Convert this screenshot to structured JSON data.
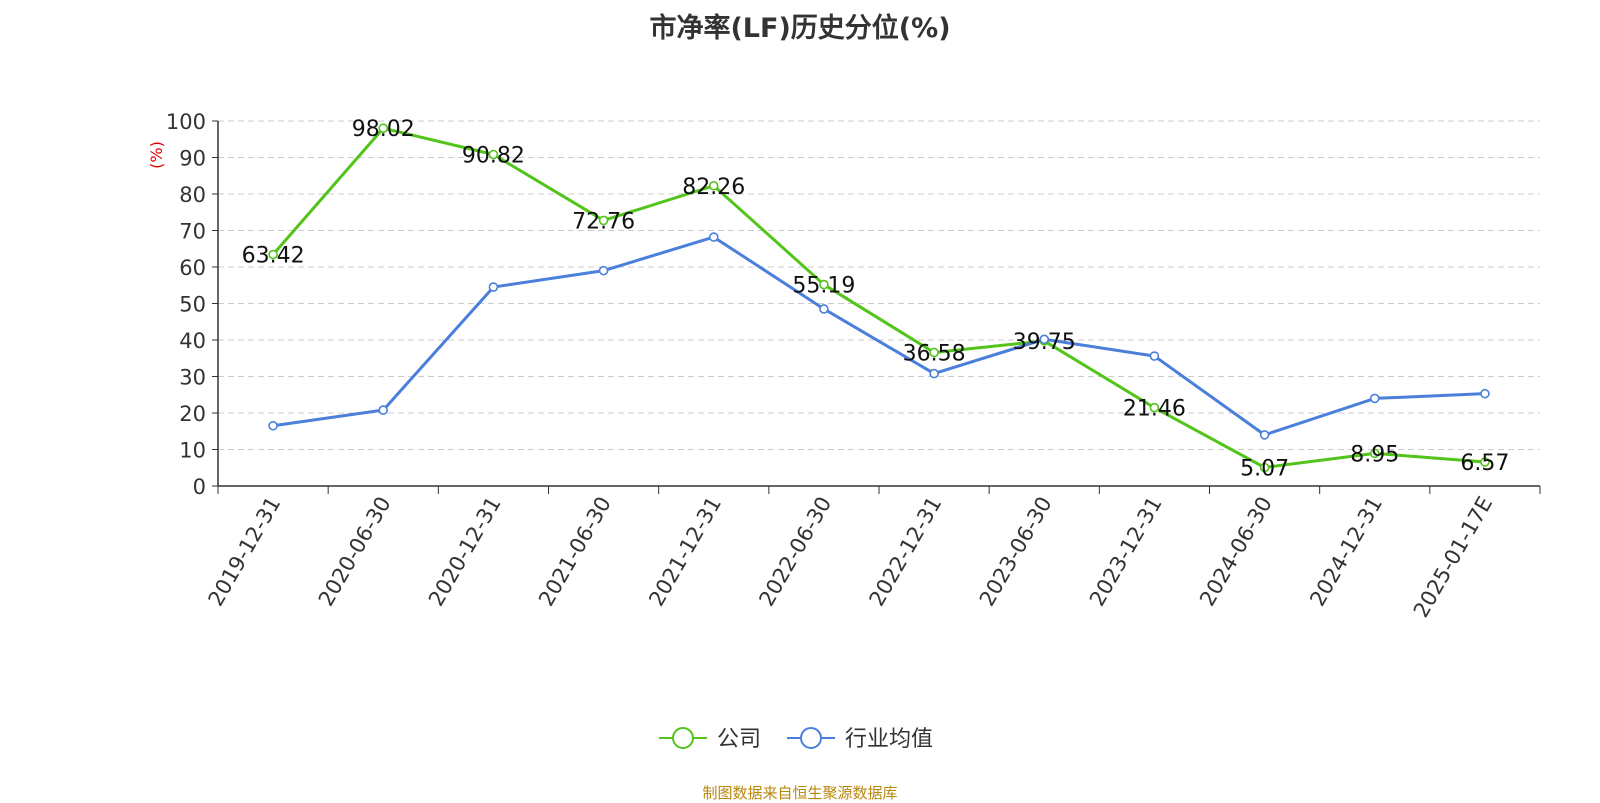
{
  "chart_data": {
    "type": "line",
    "title": "市净率(LF)历史分位(%)",
    "ylabel": "(%)",
    "xlabel": "",
    "ylim": [
      0,
      100
    ],
    "yticks": [
      0,
      10,
      20,
      30,
      40,
      50,
      60,
      70,
      80,
      90,
      100
    ],
    "grid": true,
    "legend_position": "bottom-center",
    "categories": [
      "2019-12-31",
      "2020-06-30",
      "2020-12-31",
      "2021-06-30",
      "2021-12-31",
      "2022-06-30",
      "2022-12-31",
      "2023-06-30",
      "2023-12-31",
      "2024-06-30",
      "2024-12-31",
      "2025-01-17E"
    ],
    "series": [
      {
        "name": "公司",
        "color": "#52c41a",
        "show_labels": true,
        "values": [
          63.42,
          98.02,
          90.82,
          72.76,
          82.26,
          55.19,
          36.58,
          39.75,
          21.46,
          5.07,
          8.95,
          6.57
        ]
      },
      {
        "name": "行业均值",
        "color": "#4a7fdb",
        "show_labels": false,
        "values": [
          16.5,
          20.8,
          54.5,
          59.0,
          68.2,
          48.5,
          30.8,
          40.2,
          35.6,
          14.0,
          24.0,
          25.3
        ]
      }
    ]
  },
  "footer": {
    "source": "制图数据来自恒生聚源数据库"
  },
  "colors": {
    "ylabel": "#e00000",
    "axis": "#333333",
    "grid": "#cccccc",
    "source": "#b8860b"
  }
}
